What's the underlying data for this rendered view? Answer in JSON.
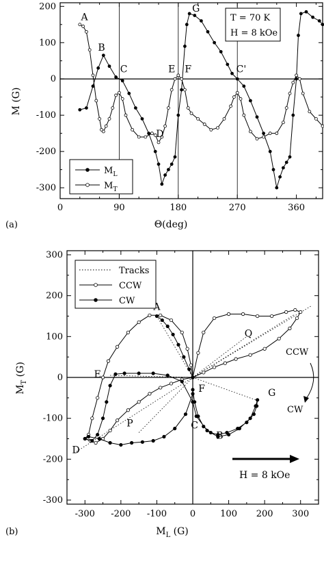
{
  "chart_data": [
    {
      "panel_label": "(a)",
      "type": "line",
      "xlabel": "Θ(deg)",
      "ylabel": "M (G)",
      "xlim": [
        0,
        400
      ],
      "ylim": [
        -330,
        210
      ],
      "x_ticks": [
        0,
        90,
        180,
        270,
        360
      ],
      "y_ticks": [
        200,
        100,
        0,
        -100,
        -200,
        -300
      ],
      "vertical_lines": [
        90,
        180,
        270
      ],
      "info_box": [
        "T = 70 K",
        "H = 8 kOe"
      ],
      "legend": {
        "placement": "bottom-left",
        "entries": [
          "M_L",
          "M_T"
        ]
      },
      "annotations": [
        {
          "text": "A",
          "x": 37,
          "y": 162
        },
        {
          "text": "B",
          "x": 63,
          "y": 78
        },
        {
          "text": "C",
          "x": 97,
          "y": 18
        },
        {
          "text": "D",
          "x": 152,
          "y": -160
        },
        {
          "text": "E",
          "x": 170,
          "y": 18
        },
        {
          "text": "F",
          "x": 195,
          "y": 18
        },
        {
          "text": "G",
          "x": 207,
          "y": 185
        },
        {
          "text": "C'",
          "x": 276,
          "y": 18
        }
      ],
      "series": [
        {
          "name": "M_L",
          "marker": "filled",
          "x": [
            30,
            40,
            50,
            58,
            66,
            75,
            85,
            95,
            105,
            115,
            125,
            135,
            145,
            150,
            155,
            160,
            165,
            170,
            175,
            180,
            185,
            190,
            193,
            197,
            205,
            215,
            225,
            235,
            245,
            255,
            262,
            270,
            280,
            290,
            300,
            310,
            320,
            325,
            330,
            335,
            340,
            345,
            350,
            355,
            360,
            363,
            367,
            375,
            385,
            395,
            400
          ],
          "y": [
            -85,
            -80,
            -20,
            30,
            65,
            35,
            5,
            -5,
            -40,
            -80,
            -110,
            -150,
            -200,
            -235,
            -290,
            -265,
            -250,
            -235,
            -215,
            -100,
            -30,
            90,
            150,
            180,
            175,
            160,
            130,
            100,
            75,
            40,
            15,
            0,
            -20,
            -60,
            -105,
            -150,
            -200,
            -250,
            -300,
            -270,
            -245,
            -230,
            -215,
            -100,
            0,
            120,
            180,
            185,
            170,
            160,
            150
          ]
        },
        {
          "name": "M_T",
          "marker": "open",
          "x": [
            30,
            35,
            40,
            45,
            50,
            55,
            60,
            63,
            66,
            70,
            75,
            80,
            85,
            90,
            95,
            100,
            110,
            120,
            130,
            140,
            145,
            150,
            155,
            160,
            165,
            170,
            175,
            180,
            185,
            190,
            195,
            200,
            210,
            220,
            230,
            240,
            250,
            260,
            265,
            270,
            275,
            280,
            290,
            300,
            310,
            320,
            330,
            340,
            345,
            350,
            355,
            360,
            365,
            370,
            380,
            390,
            400
          ],
          "y": [
            150,
            145,
            130,
            80,
            10,
            -60,
            -110,
            -140,
            -145,
            -130,
            -110,
            -80,
            -45,
            -38,
            -55,
            -100,
            -140,
            -160,
            -160,
            -150,
            -155,
            -175,
            -160,
            -130,
            -80,
            -30,
            0,
            10,
            0,
            -30,
            -80,
            -95,
            -110,
            -125,
            -140,
            -135,
            -110,
            -75,
            -50,
            -38,
            -55,
            -100,
            -145,
            -165,
            -160,
            -150,
            -150,
            -120,
            -80,
            -40,
            -10,
            10,
            0,
            -40,
            -90,
            -110,
            -130
          ]
        }
      ]
    },
    {
      "panel_label": "(b)",
      "type": "scatter",
      "xlabel": "M_L (G)",
      "ylabel": "M_T (G)",
      "xlim": [
        -350,
        350
      ],
      "ylim": [
        -310,
        310
      ],
      "x_ticks": [
        -300,
        -200,
        -100,
        0,
        100,
        200,
        300
      ],
      "y_ticks": [
        300,
        200,
        100,
        0,
        -100,
        -200,
        -300
      ],
      "legend": {
        "placement": "top-left",
        "entries": [
          "Tracks",
          "CCW",
          "CW"
        ]
      },
      "field_label": "H = 8 kOe",
      "rotation_labels": [
        "CCW",
        "CW"
      ],
      "annotations": [
        {
          "text": "A",
          "x": -100,
          "y": 165
        },
        {
          "text": "Q",
          "x": 155,
          "y": 100
        },
        {
          "text": "E",
          "x": -265,
          "y": 0
        },
        {
          "text": "F",
          "x": 25,
          "y": -35
        },
        {
          "text": "G",
          "x": 220,
          "y": -45
        },
        {
          "text": "P",
          "x": -175,
          "y": -120
        },
        {
          "text": "C",
          "x": 5,
          "y": -125
        },
        {
          "text": "B",
          "x": 75,
          "y": -150
        },
        {
          "text": "D",
          "x": -325,
          "y": -185
        }
      ],
      "series": [
        {
          "name": "Tracks",
          "style": "dotted",
          "segments": [
            [
              [
                -330,
                -185
              ],
              [
                0,
                0
              ]
            ],
            [
              [
                0,
                0
              ],
              [
                330,
                175
              ]
            ],
            [
              [
                -150,
                -135
              ],
              [
                0,
                0
              ]
            ],
            [
              [
                0,
                0
              ],
              [
                150,
                100
              ]
            ],
            [
              [
                -100,
                150
              ],
              [
                0,
                0
              ]
            ],
            [
              [
                0,
                0
              ],
              [
                175,
                -55
              ]
            ],
            [
              [
                -230,
                5
              ],
              [
                0,
                0
              ]
            ],
            [
              [
                0,
                0
              ],
              [
                285,
                155
              ]
            ]
          ]
        },
        {
          "name": "CCW",
          "marker": "open",
          "x": [
            0,
            -5,
            -15,
            -30,
            -60,
            -90,
            -120,
            -150,
            -180,
            -210,
            -235,
            -250,
            -265,
            -280,
            -290,
            -300,
            -285,
            -270,
            -250,
            -230,
            -210,
            -180,
            -150,
            -120,
            -90,
            -60,
            -30,
            0,
            15,
            30,
            60,
            100,
            140,
            180,
            220,
            260,
            285,
            300,
            290,
            270,
            240,
            200,
            160,
            120,
            90,
            60,
            30,
            0
          ],
          "y": [
            0,
            30,
            70,
            110,
            140,
            152,
            152,
            135,
            110,
            75,
            40,
            0,
            -50,
            -100,
            -140,
            -150,
            -155,
            -160,
            -150,
            -130,
            -105,
            -80,
            -60,
            -40,
            -25,
            -15,
            -5,
            0,
            60,
            110,
            145,
            155,
            155,
            150,
            150,
            160,
            165,
            160,
            145,
            120,
            95,
            70,
            55,
            45,
            35,
            25,
            12,
            0
          ]
        },
        {
          "name": "CW",
          "marker": "filled",
          "x": [
            -100,
            -85,
            -70,
            -55,
            -40,
            -25,
            -10,
            0,
            0,
            5,
            15,
            30,
            50,
            70,
            95,
            125,
            150,
            170,
            178,
            180,
            175,
            160,
            130,
            100,
            70,
            40,
            10,
            0,
            -30,
            -70,
            -110,
            -150,
            -190,
            -215,
            -230,
            -240,
            -250,
            -265,
            -280,
            -300,
            -290,
            -260,
            -230,
            -200,
            -170,
            -140,
            -110,
            -80,
            -50,
            -20,
            0
          ],
          "y": [
            150,
            140,
            125,
            105,
            80,
            50,
            20,
            0,
            -30,
            -60,
            -95,
            -120,
            -135,
            -140,
            -135,
            -125,
            -110,
            -90,
            -70,
            -55,
            -70,
            -100,
            -125,
            -140,
            -145,
            -130,
            -95,
            -60,
            -10,
            5,
            10,
            10,
            10,
            8,
            -20,
            -60,
            -100,
            -140,
            -155,
            -150,
            -145,
            -150,
            -160,
            -165,
            -160,
            -158,
            -155,
            -145,
            -125,
            -90,
            -40
          ]
        }
      ]
    }
  ]
}
